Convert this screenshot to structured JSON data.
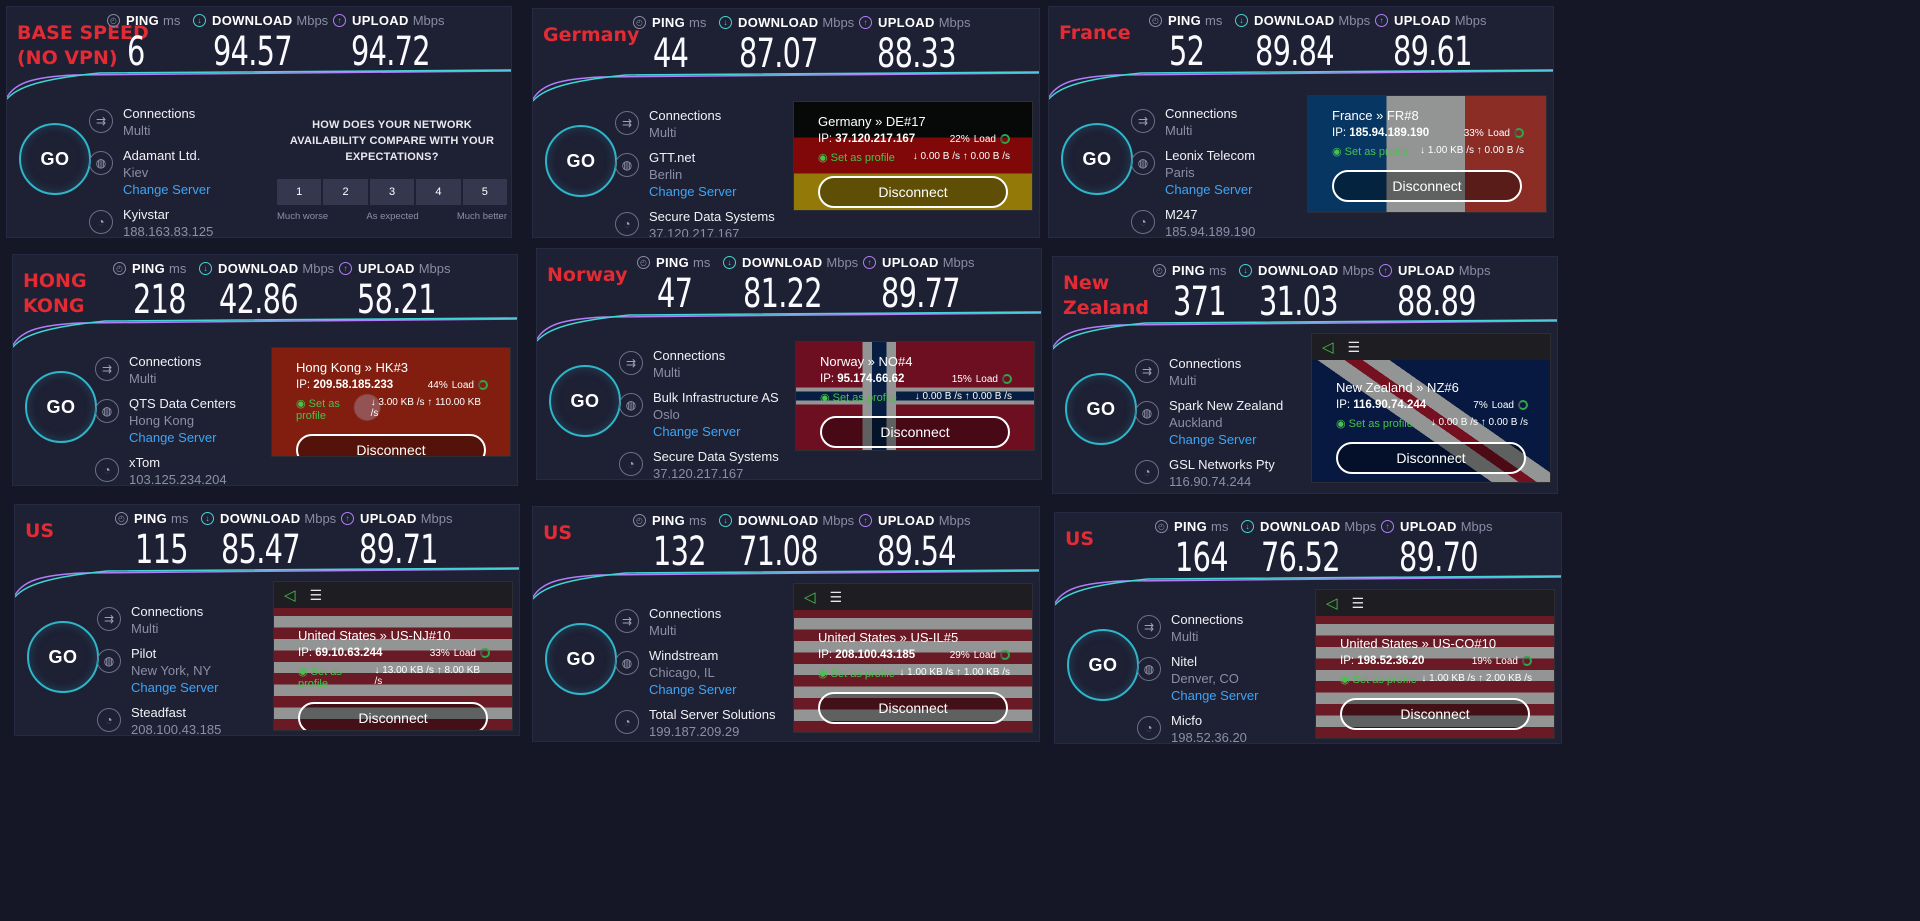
{
  "metric_labels": {
    "ping": "PING",
    "download": "DOWNLOAD",
    "upload": "UPLOAD",
    "ping_unit": "ms",
    "speed_unit": "Mbps"
  },
  "go_label": "GO",
  "connections_label": "Connections",
  "connections_mode": "Multi",
  "change_server_label": "Change Server",
  "disconnect_label": "Disconnect",
  "set_as_profile_label": "Set as profile",
  "load_suffix": "Load",
  "colors": {
    "title_red": "#e32b34",
    "download": "#3fd7d4",
    "upload": "#b47dfc",
    "link": "#3ea5f5",
    "go_ring": "#2fb5c9",
    "profile_green": "#45c34b"
  },
  "survey": {
    "question": "HOW DOES YOUR NETWORK AVAILABILITY COMPARE WITH YOUR EXPECTATIONS?",
    "scale": [
      "1",
      "2",
      "3",
      "4",
      "5"
    ],
    "anchor_low": "Much worse",
    "anchor_mid": "As expected",
    "anchor_high": "Much better"
  },
  "panels": [
    {
      "location": "BASE SPEED\n(NO VPN)",
      "ping": "6",
      "download": "94.57",
      "upload": "94.72",
      "isp": "Adamant Ltd.",
      "isp_city": "Kiev",
      "host": "Kyivstar",
      "host_ip": "188.163.83.125"
    },
    {
      "location": "Germany",
      "ping": "44",
      "download": "87.07",
      "upload": "88.33",
      "isp": "GTT.net",
      "isp_city": "Berlin",
      "host": "Secure Data Systems",
      "host_ip": "37.120.217.167",
      "vpn": {
        "server": "Germany » DE#17",
        "ip_label": "IP:",
        "ip": "37.120.217.167",
        "load": "22%",
        "down": "0.00 B /s",
        "up": "0.00 B /s"
      }
    },
    {
      "location": "France",
      "ping": "52",
      "download": "89.84",
      "upload": "89.61",
      "isp": "Leonix Telecom",
      "isp_city": "Paris",
      "host": "M247",
      "host_ip": "185.94.189.190",
      "vpn": {
        "server": "France » FR#8",
        "ip_label": "IP:",
        "ip": "185.94.189.190",
        "load": "33%",
        "down": "1.00 KB /s",
        "up": "0.00 B /s"
      }
    },
    {
      "location": "HONG\nKONG",
      "ping": "218",
      "download": "42.86",
      "upload": "58.21",
      "isp": "QTS Data Centers",
      "isp_city": "Hong Kong",
      "host": "xTom",
      "host_ip": "103.125.234.204",
      "vpn": {
        "server": "Hong Kong » HK#3",
        "ip_label": "IP:",
        "ip": "209.58.185.233",
        "load": "44%",
        "down": "3.00 KB /s",
        "up": "110.00 KB /s"
      }
    },
    {
      "location": "Norway",
      "ping": "47",
      "download": "81.22",
      "upload": "89.77",
      "isp": "Bulk Infrastructure AS",
      "isp_city": "Oslo",
      "host": "Secure Data Systems",
      "host_ip": "37.120.217.167",
      "vpn": {
        "server": "Norway » NO#4",
        "ip_label": "IP:",
        "ip": "95.174.66.62",
        "load": "15%",
        "down": "0.00 B /s",
        "up": "0.00 B /s"
      }
    },
    {
      "location": "New\nZealand",
      "ping": "371",
      "download": "31.03",
      "upload": "88.89",
      "isp": "Spark New Zealand",
      "isp_city": "Auckland",
      "host": "GSL Networks Pty",
      "host_ip": "116.90.74.244",
      "vpn": {
        "server": "New Zealand » NZ#6",
        "ip_label": "IP:",
        "ip": "116.90.74.244",
        "load": "7%",
        "down": "0.00 B /s",
        "up": "0.00 B /s"
      }
    },
    {
      "location": "US",
      "ping": "115",
      "download": "85.47",
      "upload": "89.71",
      "isp": "Pilot",
      "isp_city": "New York, NY",
      "host": "Steadfast",
      "host_ip": "208.100.43.185",
      "vpn": {
        "server": "United States » US-NJ#10",
        "ip_label": "IP:",
        "ip": "69.10.63.244",
        "load": "33%",
        "down": "13.00 KB /s",
        "up": "8.00 KB /s"
      }
    },
    {
      "location": "US",
      "ping": "132",
      "download": "71.08",
      "upload": "89.54",
      "isp": "Windstream",
      "isp_city": "Chicago, IL",
      "host": "Total Server Solutions",
      "host_ip": "199.187.209.29",
      "vpn": {
        "server": "United States » US-IL#5",
        "ip_label": "IP:",
        "ip": "208.100.43.185",
        "load": "29%",
        "down": "1.00 KB /s",
        "up": "1.00 KB /s"
      }
    },
    {
      "location": "US",
      "ping": "164",
      "download": "76.52",
      "upload": "89.70",
      "isp": "Nitel",
      "isp_city": "Denver, CO",
      "host": "Micfo",
      "host_ip": "198.52.36.20",
      "vpn": {
        "server": "United States » US-CO#10",
        "ip_label": "IP:",
        "ip": "198.52.36.20",
        "load": "19%",
        "down": "1.00 KB /s",
        "up": "2.00 KB /s"
      }
    }
  ]
}
